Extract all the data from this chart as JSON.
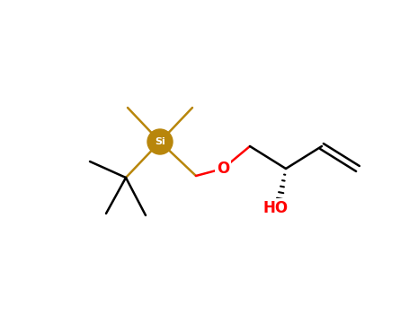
{
  "bg_color": "#ffffff",
  "bond_color": "#000000",
  "si_color": "#b8860b",
  "o_color": "#ff0000",
  "ho_color": "#ff0000",
  "si_label": "Si",
  "o_label": "O",
  "ho_label": "HO",
  "line_width": 1.8,
  "fig_width": 4.55,
  "fig_height": 3.5,
  "dpi": 100
}
